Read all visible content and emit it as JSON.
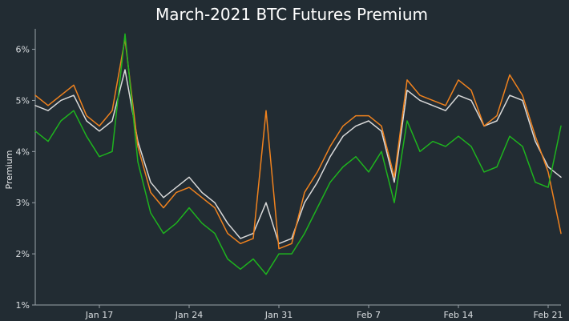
{
  "chart_data": {
    "type": "line",
    "title": "March-2021 BTC Futures Premium",
    "xlabel": "",
    "ylabel": "Premium",
    "grid": false,
    "legend": "none",
    "xlim": [
      "2021-01-12",
      "2021-02-22"
    ],
    "ylim": [
      1,
      6.4
    ],
    "y_ticks": [
      1,
      2,
      3,
      4,
      5,
      6
    ],
    "y_tick_labels": [
      "1%",
      "2%",
      "3%",
      "4%",
      "5%",
      "6%"
    ],
    "x_ticks": [
      "2021-01-17",
      "2021-01-24",
      "2021-01-31",
      "2021-02-07",
      "2021-02-14",
      "2021-02-21"
    ],
    "x_tick_labels": [
      "Jan 17",
      "Jan 24",
      "Jan 31",
      "Feb 7",
      "Feb 14",
      "Feb 21"
    ],
    "series": [
      {
        "color": "#d9d9d9",
        "x": [
          "2021-01-12",
          "2021-01-13",
          "2021-01-14",
          "2021-01-15",
          "2021-01-16",
          "2021-01-17",
          "2021-01-18",
          "2021-01-19",
          "2021-01-20",
          "2021-01-21",
          "2021-01-22",
          "2021-01-23",
          "2021-01-24",
          "2021-01-25",
          "2021-01-26",
          "2021-01-27",
          "2021-01-28",
          "2021-01-29",
          "2021-01-30",
          "2021-01-31",
          "2021-02-01",
          "2021-02-02",
          "2021-02-03",
          "2021-02-04",
          "2021-02-05",
          "2021-02-06",
          "2021-02-07",
          "2021-02-08",
          "2021-02-09",
          "2021-02-10",
          "2021-02-11",
          "2021-02-12",
          "2021-02-13",
          "2021-02-14",
          "2021-02-15",
          "2021-02-16",
          "2021-02-17",
          "2021-02-18",
          "2021-02-19",
          "2021-02-20",
          "2021-02-21",
          "2021-02-22"
        ],
        "values": [
          4.9,
          4.8,
          5.0,
          5.1,
          4.6,
          4.4,
          4.6,
          5.6,
          4.2,
          3.4,
          3.1,
          3.3,
          3.5,
          3.2,
          3.0,
          2.6,
          2.3,
          2.4,
          3.0,
          2.2,
          2.3,
          3.0,
          3.4,
          3.9,
          4.3,
          4.5,
          4.6,
          4.4,
          3.4,
          5.2,
          5.0,
          4.9,
          4.8,
          5.1,
          5.0,
          4.5,
          4.6,
          5.1,
          5.0,
          4.2,
          3.7,
          3.5
        ]
      },
      {
        "color": "#f0821e",
        "x": [
          "2021-01-12",
          "2021-01-13",
          "2021-01-14",
          "2021-01-15",
          "2021-01-16",
          "2021-01-17",
          "2021-01-18",
          "2021-01-19",
          "2021-01-20",
          "2021-01-21",
          "2021-01-22",
          "2021-01-23",
          "2021-01-24",
          "2021-01-25",
          "2021-01-26",
          "2021-01-27",
          "2021-01-28",
          "2021-01-29",
          "2021-01-30",
          "2021-01-31",
          "2021-02-01",
          "2021-02-02",
          "2021-02-03",
          "2021-02-04",
          "2021-02-05",
          "2021-02-06",
          "2021-02-07",
          "2021-02-08",
          "2021-02-09",
          "2021-02-10",
          "2021-02-11",
          "2021-02-12",
          "2021-02-13",
          "2021-02-14",
          "2021-02-15",
          "2021-02-16",
          "2021-02-17",
          "2021-02-18",
          "2021-02-19",
          "2021-02-20",
          "2021-02-21",
          "2021-02-22"
        ],
        "values": [
          5.1,
          4.9,
          5.1,
          5.3,
          4.7,
          4.5,
          4.8,
          6.2,
          4.1,
          3.2,
          2.9,
          3.2,
          3.3,
          3.1,
          2.9,
          2.4,
          2.2,
          2.3,
          4.8,
          2.1,
          2.2,
          3.2,
          3.6,
          4.1,
          4.5,
          4.7,
          4.7,
          4.5,
          3.5,
          5.4,
          5.1,
          5.0,
          4.9,
          5.4,
          5.2,
          4.5,
          4.7,
          5.5,
          5.1,
          4.3,
          3.6,
          2.4
        ]
      },
      {
        "color": "#1eb41e",
        "x": [
          "2021-01-12",
          "2021-01-13",
          "2021-01-14",
          "2021-01-15",
          "2021-01-16",
          "2021-01-17",
          "2021-01-18",
          "2021-01-19",
          "2021-01-20",
          "2021-01-21",
          "2021-01-22",
          "2021-01-23",
          "2021-01-24",
          "2021-01-25",
          "2021-01-26",
          "2021-01-27",
          "2021-01-28",
          "2021-01-29",
          "2021-01-30",
          "2021-01-31",
          "2021-02-01",
          "2021-02-02",
          "2021-02-03",
          "2021-02-04",
          "2021-02-05",
          "2021-02-06",
          "2021-02-07",
          "2021-02-08",
          "2021-02-09",
          "2021-02-10",
          "2021-02-11",
          "2021-02-12",
          "2021-02-13",
          "2021-02-14",
          "2021-02-15",
          "2021-02-16",
          "2021-02-17",
          "2021-02-18",
          "2021-02-19",
          "2021-02-20",
          "2021-02-21",
          "2021-02-22"
        ],
        "values": [
          4.4,
          4.2,
          4.6,
          4.8,
          4.3,
          3.9,
          4.0,
          6.3,
          3.8,
          2.8,
          2.4,
          2.6,
          2.9,
          2.6,
          2.4,
          1.9,
          1.7,
          1.9,
          1.6,
          2.0,
          2.0,
          2.4,
          2.9,
          3.4,
          3.7,
          3.9,
          3.6,
          4.0,
          3.0,
          4.6,
          4.0,
          4.2,
          4.1,
          4.3,
          4.1,
          3.6,
          3.7,
          4.3,
          4.1,
          3.4,
          3.3,
          4.5
        ]
      }
    ]
  }
}
